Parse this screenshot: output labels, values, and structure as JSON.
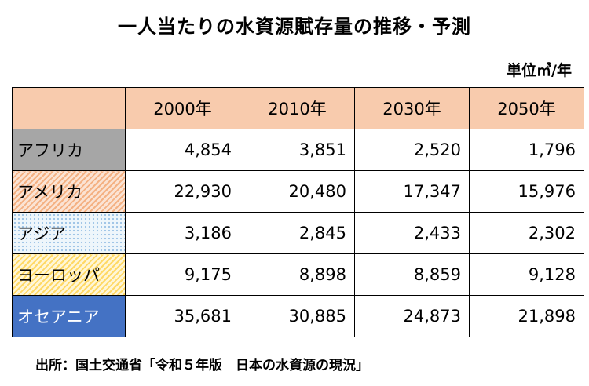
{
  "title": "一人当たりの水資源賦存量の推移・予測",
  "unit": "単位㎥/年",
  "source": "出所：国土交通省「令和５年版　日本の水資源の現況」",
  "colors": {
    "header": "#f8cbad",
    "africa": "#a6a6a6",
    "america": "#f4b183",
    "asia": "#9dc3e6",
    "europe": "#ffd966",
    "oceania": "#4472c4"
  },
  "chart_data": {
    "type": "table",
    "columns": [
      "2000年",
      "2010年",
      "2030年",
      "2050年"
    ],
    "rows": [
      {
        "region": "アフリカ",
        "values": [
          "4,854",
          "3,851",
          "2,520",
          "1,796"
        ]
      },
      {
        "region": "アメリカ",
        "values": [
          "22,930",
          "20,480",
          "17,347",
          "15,976"
        ]
      },
      {
        "region": "アジア",
        "values": [
          "3,186",
          "2,845",
          "2,433",
          "2,302"
        ]
      },
      {
        "region": "ヨーロッパ",
        "values": [
          "9,175",
          "8,898",
          "8,859",
          "9,128"
        ]
      },
      {
        "region": "オセアニア",
        "values": [
          "35,681",
          "30,885",
          "24,873",
          "21,898"
        ]
      }
    ]
  }
}
